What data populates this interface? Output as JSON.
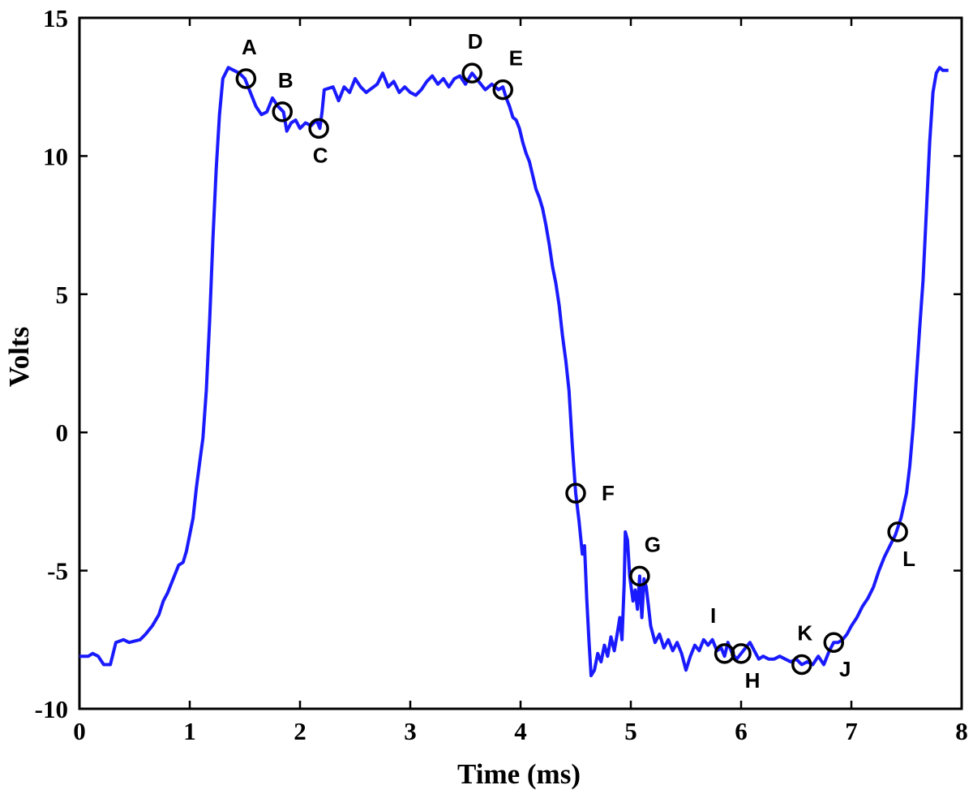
{
  "chart_data": {
    "type": "line",
    "xlabel": "Time (ms)",
    "ylabel": "Volts",
    "xlim": [
      0,
      8
    ],
    "ylim": [
      -10,
      15
    ],
    "x_ticks": [
      "0",
      "1",
      "2",
      "3",
      "4",
      "5",
      "6",
      "7",
      "8"
    ],
    "y_ticks": [
      "-10",
      "-5",
      "0",
      "5",
      "10",
      "15"
    ],
    "grid": false,
    "series": [
      {
        "color": "#1a1aff",
        "points": [
          [
            0.0,
            -8.1
          ],
          [
            0.08,
            -8.1
          ],
          [
            0.12,
            -8.0
          ],
          [
            0.17,
            -8.1
          ],
          [
            0.22,
            -8.4
          ],
          [
            0.28,
            -8.4
          ],
          [
            0.33,
            -7.6
          ],
          [
            0.4,
            -7.5
          ],
          [
            0.45,
            -7.6
          ],
          [
            0.55,
            -7.5
          ],
          [
            0.6,
            -7.3
          ],
          [
            0.66,
            -7.0
          ],
          [
            0.72,
            -6.6
          ],
          [
            0.76,
            -6.1
          ],
          [
            0.8,
            -5.8
          ],
          [
            0.85,
            -5.3
          ],
          [
            0.9,
            -4.8
          ],
          [
            0.94,
            -4.7
          ],
          [
            0.97,
            -4.3
          ],
          [
            1.0,
            -3.7
          ],
          [
            1.03,
            -3.1
          ],
          [
            1.06,
            -2.0
          ],
          [
            1.09,
            -1.1
          ],
          [
            1.12,
            -0.2
          ],
          [
            1.15,
            1.5
          ],
          [
            1.18,
            4.0
          ],
          [
            1.21,
            7.0
          ],
          [
            1.24,
            9.5
          ],
          [
            1.27,
            11.5
          ],
          [
            1.3,
            12.8
          ],
          [
            1.35,
            13.2
          ],
          [
            1.4,
            13.1
          ],
          [
            1.45,
            13.0
          ],
          [
            1.5,
            12.8
          ],
          [
            1.55,
            12.3
          ],
          [
            1.6,
            11.8
          ],
          [
            1.65,
            11.5
          ],
          [
            1.7,
            11.6
          ],
          [
            1.75,
            12.1
          ],
          [
            1.8,
            11.8
          ],
          [
            1.85,
            11.6
          ],
          [
            1.88,
            10.9
          ],
          [
            1.92,
            11.2
          ],
          [
            1.96,
            11.3
          ],
          [
            2.0,
            11.0
          ],
          [
            2.05,
            11.2
          ],
          [
            2.1,
            11.1
          ],
          [
            2.15,
            11.3
          ],
          [
            2.18,
            11.0
          ],
          [
            2.2,
            11.6
          ],
          [
            2.22,
            12.4
          ],
          [
            2.3,
            12.5
          ],
          [
            2.35,
            12.0
          ],
          [
            2.4,
            12.5
          ],
          [
            2.45,
            12.3
          ],
          [
            2.5,
            12.8
          ],
          [
            2.55,
            12.5
          ],
          [
            2.6,
            12.3
          ],
          [
            2.7,
            12.6
          ],
          [
            2.75,
            13.0
          ],
          [
            2.8,
            12.5
          ],
          [
            2.85,
            12.7
          ],
          [
            2.9,
            12.3
          ],
          [
            2.95,
            12.5
          ],
          [
            3.0,
            12.3
          ],
          [
            3.05,
            12.2
          ],
          [
            3.1,
            12.4
          ],
          [
            3.15,
            12.7
          ],
          [
            3.2,
            12.9
          ],
          [
            3.25,
            12.6
          ],
          [
            3.3,
            12.8
          ],
          [
            3.35,
            12.5
          ],
          [
            3.4,
            12.8
          ],
          [
            3.45,
            12.9
          ],
          [
            3.5,
            12.6
          ],
          [
            3.56,
            13.0
          ],
          [
            3.62,
            12.7
          ],
          [
            3.68,
            12.4
          ],
          [
            3.74,
            12.6
          ],
          [
            3.8,
            12.4
          ],
          [
            3.84,
            12.5
          ],
          [
            3.87,
            12.1
          ],
          [
            3.9,
            11.8
          ],
          [
            3.93,
            11.4
          ],
          [
            3.96,
            11.3
          ],
          [
            3.99,
            11.0
          ],
          [
            4.02,
            10.5
          ],
          [
            4.05,
            10.1
          ],
          [
            4.08,
            9.8
          ],
          [
            4.11,
            9.3
          ],
          [
            4.14,
            8.8
          ],
          [
            4.17,
            8.5
          ],
          [
            4.2,
            8.1
          ],
          [
            4.23,
            7.5
          ],
          [
            4.26,
            6.8
          ],
          [
            4.29,
            6.0
          ],
          [
            4.32,
            5.4
          ],
          [
            4.35,
            4.6
          ],
          [
            4.38,
            3.5
          ],
          [
            4.41,
            2.6
          ],
          [
            4.44,
            1.5
          ],
          [
            4.47,
            -0.5
          ],
          [
            4.5,
            -2.2
          ],
          [
            4.53,
            -3.2
          ],
          [
            4.56,
            -4.4
          ],
          [
            4.58,
            -4.1
          ],
          [
            4.6,
            -6.0
          ],
          [
            4.62,
            -7.5
          ],
          [
            4.64,
            -8.8
          ],
          [
            4.67,
            -8.6
          ],
          [
            4.7,
            -8.0
          ],
          [
            4.73,
            -8.3
          ],
          [
            4.76,
            -7.7
          ],
          [
            4.79,
            -8.1
          ],
          [
            4.82,
            -7.4
          ],
          [
            4.85,
            -7.9
          ],
          [
            4.88,
            -7.2
          ],
          [
            4.9,
            -6.7
          ],
          [
            4.92,
            -7.5
          ],
          [
            4.94,
            -5.5
          ],
          [
            4.95,
            -3.6
          ],
          [
            4.97,
            -3.9
          ],
          [
            4.99,
            -5.2
          ],
          [
            5.02,
            -6.1
          ],
          [
            5.04,
            -5.7
          ],
          [
            5.06,
            -6.4
          ],
          [
            5.08,
            -5.2
          ],
          [
            5.1,
            -6.7
          ],
          [
            5.12,
            -5.3
          ],
          [
            5.14,
            -5.6
          ],
          [
            5.16,
            -6.3
          ],
          [
            5.18,
            -7.0
          ],
          [
            5.22,
            -7.6
          ],
          [
            5.26,
            -7.3
          ],
          [
            5.3,
            -7.8
          ],
          [
            5.34,
            -7.5
          ],
          [
            5.38,
            -7.9
          ],
          [
            5.42,
            -7.6
          ],
          [
            5.46,
            -8.0
          ],
          [
            5.5,
            -8.6
          ],
          [
            5.54,
            -8.1
          ],
          [
            5.58,
            -7.7
          ],
          [
            5.62,
            -7.9
          ],
          [
            5.66,
            -7.5
          ],
          [
            5.7,
            -7.7
          ],
          [
            5.74,
            -7.5
          ],
          [
            5.78,
            -7.9
          ],
          [
            5.82,
            -7.8
          ],
          [
            5.85,
            -8.1
          ],
          [
            5.88,
            -7.6
          ],
          [
            5.92,
            -8.0
          ],
          [
            5.96,
            -8.2
          ],
          [
            6.0,
            -8.0
          ],
          [
            6.04,
            -7.8
          ],
          [
            6.08,
            -7.6
          ],
          [
            6.12,
            -7.9
          ],
          [
            6.16,
            -8.2
          ],
          [
            6.2,
            -8.1
          ],
          [
            6.25,
            -8.2
          ],
          [
            6.3,
            -8.2
          ],
          [
            6.35,
            -8.1
          ],
          [
            6.4,
            -8.2
          ],
          [
            6.45,
            -8.3
          ],
          [
            6.5,
            -8.2
          ],
          [
            6.55,
            -8.4
          ],
          [
            6.6,
            -8.3
          ],
          [
            6.65,
            -8.4
          ],
          [
            6.7,
            -8.1
          ],
          [
            6.75,
            -8.4
          ],
          [
            6.8,
            -7.9
          ],
          [
            6.84,
            -7.6
          ],
          [
            6.88,
            -7.6
          ],
          [
            6.92,
            -7.5
          ],
          [
            6.96,
            -7.3
          ],
          [
            7.0,
            -7.0
          ],
          [
            7.05,
            -6.7
          ],
          [
            7.1,
            -6.3
          ],
          [
            7.15,
            -6.0
          ],
          [
            7.2,
            -5.6
          ],
          [
            7.25,
            -5.0
          ],
          [
            7.3,
            -4.5
          ],
          [
            7.35,
            -4.1
          ],
          [
            7.4,
            -3.7
          ],
          [
            7.45,
            -3.1
          ],
          [
            7.5,
            -2.2
          ],
          [
            7.53,
            -1.2
          ],
          [
            7.56,
            0.2
          ],
          [
            7.59,
            2.0
          ],
          [
            7.62,
            3.8
          ],
          [
            7.65,
            5.5
          ],
          [
            7.68,
            8.0
          ],
          [
            7.71,
            10.5
          ],
          [
            7.74,
            12.3
          ],
          [
            7.77,
            13.0
          ],
          [
            7.8,
            13.2
          ],
          [
            7.83,
            13.1
          ],
          [
            7.88,
            13.1
          ]
        ]
      }
    ],
    "annotations": [
      {
        "label": "A",
        "x": 1.51,
        "y": 12.8,
        "label_pos": "above"
      },
      {
        "label": "B",
        "x": 1.84,
        "y": 11.6,
        "label_pos": "above"
      },
      {
        "label": "C",
        "x": 2.17,
        "y": 11.0,
        "label_pos": "below"
      },
      {
        "label": "D",
        "x": 3.56,
        "y": 13.0,
        "label_pos": "above"
      },
      {
        "label": "E",
        "x": 3.84,
        "y": 12.4,
        "label_pos": "above-right"
      },
      {
        "label": "F",
        "x": 4.5,
        "y": -2.2,
        "label_pos": "right"
      },
      {
        "label": "G",
        "x": 5.08,
        "y": -5.2,
        "label_pos": "above-right"
      },
      {
        "label": "I",
        "x": 5.85,
        "y": -8.0,
        "label_pos": "above-left"
      },
      {
        "label": "H",
        "x": 6.0,
        "y": -8.0,
        "label_pos": "below-right"
      },
      {
        "label": "K",
        "x": 6.55,
        "y": -8.4,
        "label_pos": "above"
      },
      {
        "label": "J",
        "x": 6.84,
        "y": -7.6,
        "label_pos": "below-right"
      },
      {
        "label": "L",
        "x": 7.42,
        "y": -3.6,
        "label_pos": "below-right"
      }
    ]
  }
}
